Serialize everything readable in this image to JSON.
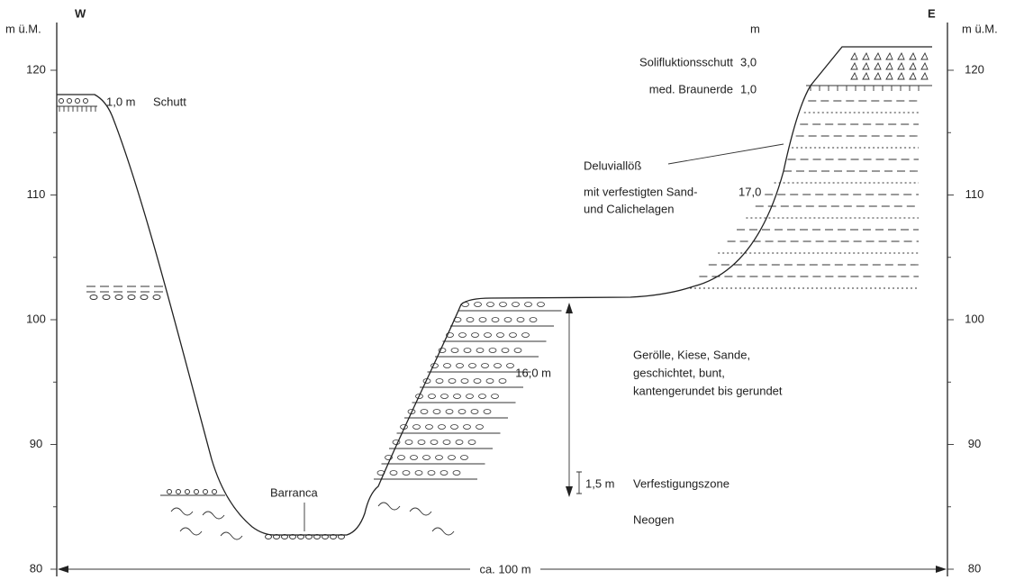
{
  "axis": {
    "unit": "m ü.M.",
    "ticks": [
      80,
      90,
      100,
      110,
      120
    ]
  },
  "orientation": {
    "west": "W",
    "east": "E"
  },
  "thickness_header": "m",
  "layers": [
    {
      "name": "Solifluktionsschutt",
      "thickness": "3,0"
    },
    {
      "name": "med. Braunerde",
      "thickness": "1,0"
    },
    {
      "name": "Deluviallöß",
      "lines": [
        "mit verfestigten Sand-",
        "und Calichelagen"
      ],
      "thickness": "17,0"
    }
  ],
  "left_rim": {
    "thickness": "1,0 m",
    "name": "Schutt"
  },
  "barranca": "Barranca",
  "gravel": {
    "thickness": "16,0 m",
    "lines": [
      "Gerölle, Kiese, Sande,",
      "geschichtet, bunt,",
      "kantengerundet bis gerundet"
    ]
  },
  "hardened_zone": {
    "thickness": "1,5 m",
    "name": "Verfestigungszone"
  },
  "base": "Neogen",
  "width": "ca. 100 m"
}
